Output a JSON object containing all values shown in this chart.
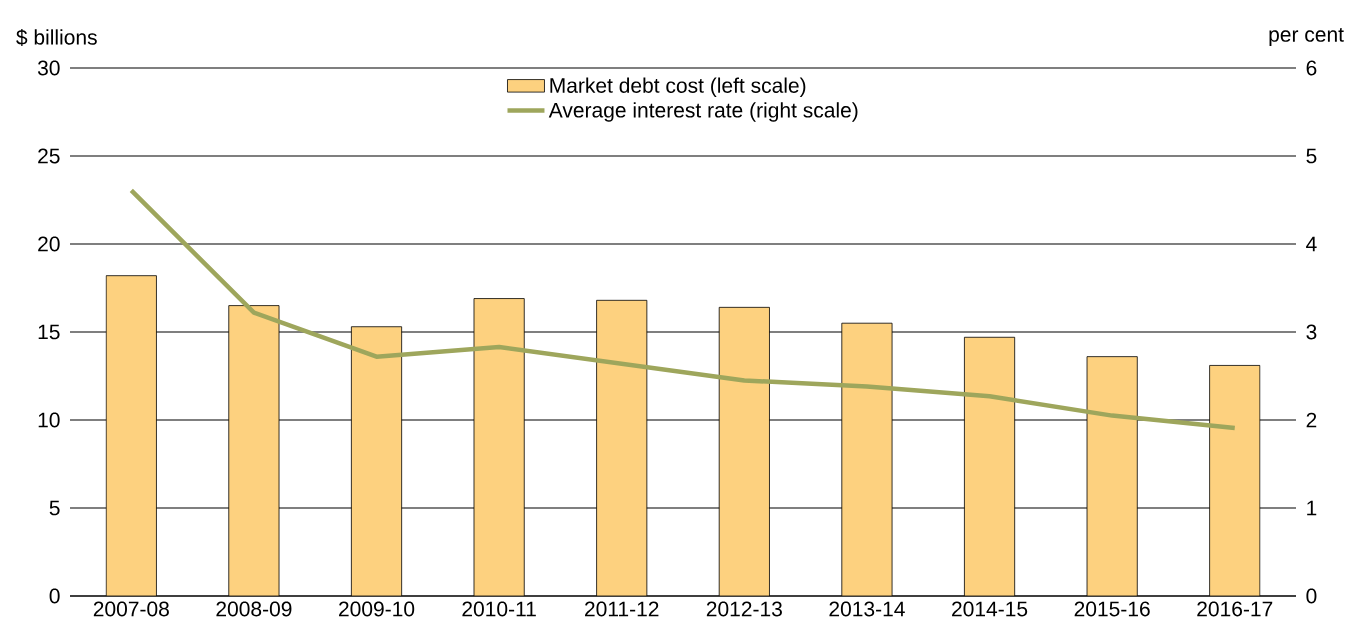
{
  "chart_data": {
    "type": "bar",
    "categories": [
      "2007-08",
      "2008-09",
      "2009-10",
      "2010-11",
      "2011-12",
      "2012-13",
      "2013-14",
      "2014-15",
      "2015-16",
      "2016-17"
    ],
    "series": [
      {
        "name": "Market debt cost (left scale)",
        "color": "#fdd17f",
        "values": [
          18.2,
          16.5,
          15.3,
          16.9,
          16.8,
          16.4,
          15.5,
          14.7,
          13.6,
          13.1
        ]
      },
      {
        "name": "Average interest rate (right scale)",
        "type": "line",
        "axis": "y2",
        "color": "#9ea65c",
        "values": [
          4.61,
          3.22,
          2.72,
          2.83,
          2.64,
          2.45,
          2.38,
          2.27,
          2.05,
          1.91
        ]
      }
    ],
    "ylabel": "$ billions",
    "y2label": "per cent",
    "ylim": [
      0,
      30
    ],
    "yticks": [
      0,
      5,
      10,
      15,
      20,
      25,
      30
    ],
    "y2lim": [
      0,
      6
    ],
    "y2ticks": [
      0,
      1,
      2,
      3,
      4,
      5,
      6
    ],
    "grid": "y",
    "legend": "top"
  }
}
